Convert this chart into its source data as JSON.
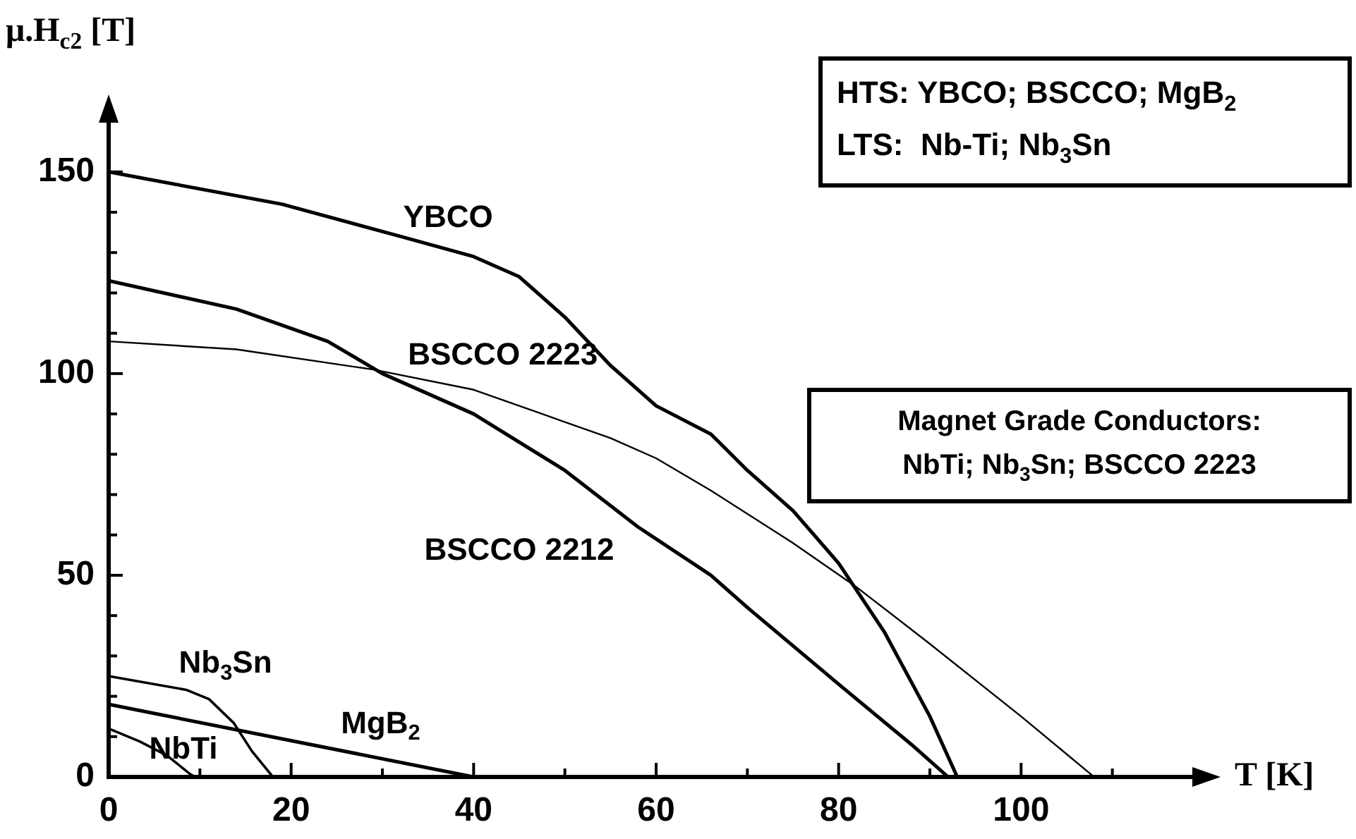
{
  "chart_data": {
    "type": "line",
    "xlabel": "T [K]",
    "ylabel": "μ.H$_{c2}$ [T]",
    "xlim": [
      0,
      120
    ],
    "ylim": [
      0,
      165
    ],
    "xticks": [
      0,
      {
        "value": 10,
        "label": null
      },
      20,
      {
        "value": 30,
        "label": null
      },
      40,
      {
        "value": 50,
        "label": null
      },
      60,
      {
        "value": 70,
        "label": null
      },
      80,
      {
        "value": 90,
        "label": null
      },
      100,
      {
        "value": 110,
        "label": null
      }
    ],
    "yticks": [
      0,
      {
        "value": 10,
        "label": null
      },
      {
        "value": 20,
        "label": null
      },
      {
        "value": 30,
        "label": null
      },
      {
        "value": 40,
        "label": null
      },
      50,
      {
        "value": 60,
        "label": null
      },
      {
        "value": 70,
        "label": null
      },
      {
        "value": 80,
        "label": null
      },
      {
        "value": 90,
        "label": null
      },
      100,
      {
        "value": 110,
        "label": null
      },
      {
        "value": 120,
        "label": null
      },
      {
        "value": 130,
        "label": null
      },
      {
        "value": 140,
        "label": null
      },
      150
    ],
    "grid": false,
    "legend": false,
    "marker": "none",
    "line_style": "solid",
    "series": [
      {
        "name": "YBCO",
        "color": "#000000",
        "x": [
          0,
          19,
          32,
          40,
          45,
          50,
          55,
          60,
          66,
          70,
          75,
          80,
          85,
          90,
          93
        ],
        "values": [
          150,
          142,
          134,
          129,
          124,
          114,
          102,
          92,
          85,
          76,
          66,
          53,
          36,
          15,
          0
        ]
      },
      {
        "name": "BSCCO 2223",
        "color": "#000000",
        "x": [
          0,
          14,
          29,
          40,
          50,
          55,
          60,
          66,
          75,
          82,
          90,
          100,
          108
        ],
        "values": [
          108,
          106,
          101,
          96,
          88,
          84,
          79,
          71,
          58,
          47,
          33,
          15,
          0
        ]
      },
      {
        "name": "BSCCO 2212",
        "color": "#000000",
        "x": [
          0,
          14,
          24,
          30,
          40,
          50,
          58,
          66,
          70,
          80,
          88,
          92
        ],
        "values": [
          123,
          116,
          108,
          100,
          90,
          76,
          62,
          50,
          42,
          23,
          8,
          0
        ]
      },
      {
        "name": "Nb$_{3}$Sn",
        "color": "#000000",
        "x": [
          0,
          8.5,
          11,
          13.7,
          15.7,
          18
        ],
        "values": [
          25,
          21.6,
          19.3,
          13.4,
          6.4,
          0
        ]
      },
      {
        "name": "NbTi",
        "color": "#000000",
        "x": [
          0,
          3.4,
          6.4,
          9,
          9.5
        ],
        "values": [
          12,
          8.8,
          5.3,
          0.6,
          0
        ]
      },
      {
        "name": "MgB$_{2}$",
        "color": "#000000",
        "x": [
          0,
          40
        ],
        "values": [
          18,
          0
        ]
      }
    ],
    "annotations": [
      "HTS: YBCO; BSCCO; MgB$_{2}$\nLTS:  Nb-Ti; Nb$_{3}$Sn",
      "Magnet Grade Conductors:\nNbTi; Nb$_{3}$Sn; BSCCO 2223"
    ]
  }
}
